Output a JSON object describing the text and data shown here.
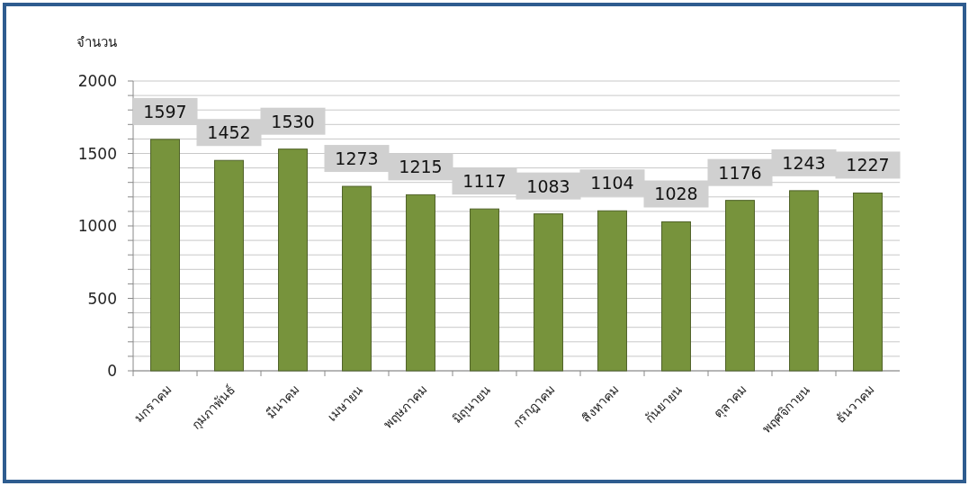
{
  "chart_data": {
    "type": "bar",
    "ylabel": "จำนวน",
    "categories": [
      "มกราคม",
      "กุมภาพันธ์",
      "มีนาคม",
      "เมษายน",
      "พฤษภาคม",
      "มิถุนายน",
      "กรกฎาคม",
      "สิงหาคม",
      "กันยายน",
      "ตุลาคม",
      "พฤศจิกายน",
      "ธันวาคม"
    ],
    "values": [
      1597,
      1452,
      1530,
      1273,
      1215,
      1117,
      1083,
      1104,
      1028,
      1176,
      1243,
      1227
    ],
    "color": "#77933c",
    "ylim": [
      0,
      2000
    ],
    "yticks": [
      0,
      {
        "value": 100,
        "label": null
      },
      {
        "value": 200,
        "label": null
      },
      {
        "value": 300,
        "label": null
      },
      {
        "value": 400,
        "label": null
      },
      500,
      {
        "value": 600,
        "label": null
      },
      {
        "value": 700,
        "label": null
      },
      {
        "value": 800,
        "label": null
      },
      {
        "value": 900,
        "label": null
      },
      1000,
      {
        "value": 1100,
        "label": null
      },
      {
        "value": 1200,
        "label": null
      },
      {
        "value": 1300,
        "label": null
      },
      {
        "value": 1400,
        "label": null
      },
      1500,
      {
        "value": 1600,
        "label": null
      },
      {
        "value": 1700,
        "label": null
      },
      {
        "value": 1800,
        "label": null
      },
      {
        "value": 1900,
        "label": null
      },
      2000
    ],
    "grid": "y",
    "data_labels": true
  }
}
